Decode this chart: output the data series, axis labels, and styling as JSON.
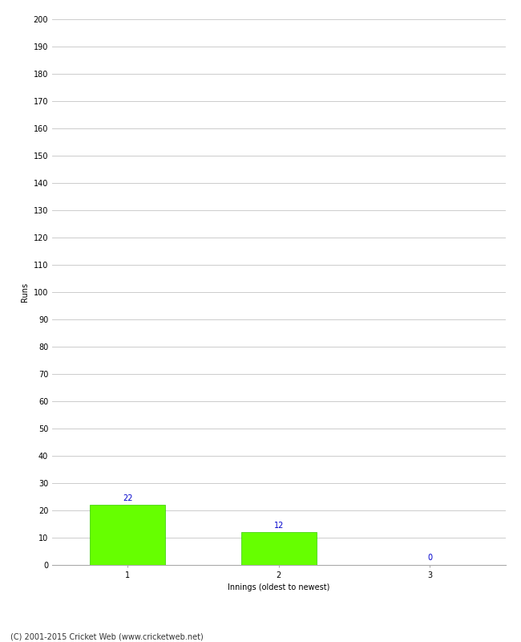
{
  "categories": [
    1,
    2,
    3
  ],
  "values": [
    22,
    12,
    0
  ],
  "bar_color": "#66ff00",
  "bar_edge_color": "#33cc00",
  "xlabel": "Innings (oldest to newest)",
  "ylabel": "Runs",
  "ylim": [
    0,
    200
  ],
  "yticks": [
    0,
    10,
    20,
    30,
    40,
    50,
    60,
    70,
    80,
    90,
    100,
    110,
    120,
    130,
    140,
    150,
    160,
    170,
    180,
    190,
    200
  ],
  "annotation_color": "#0000cc",
  "annotation_fontsize": 7,
  "footer": "(C) 2001-2015 Cricket Web (www.cricketweb.net)",
  "background_color": "#ffffff",
  "grid_color": "#cccccc",
  "tick_fontsize": 7,
  "ylabel_fontsize": 7,
  "xlabel_fontsize": 7,
  "footer_fontsize": 7
}
